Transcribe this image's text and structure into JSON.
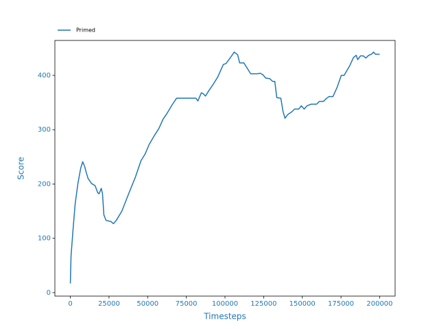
{
  "chart_data": {
    "type": "line",
    "x_label": "Timesteps",
    "y_label": "Score",
    "x": [
      0,
      440,
      1800,
      3100,
      4900,
      6700,
      8000,
      9300,
      10200,
      11500,
      13700,
      16000,
      17700,
      18600,
      20000,
      20800,
      21700,
      23100,
      26200,
      27900,
      29700,
      33300,
      37700,
      42100,
      45700,
      48300,
      51000,
      54500,
      57200,
      59900,
      62500,
      66100,
      68700,
      77600,
      81200,
      82500,
      84700,
      86000,
      87400,
      89600,
      92700,
      95300,
      98900,
      100700,
      103300,
      106000,
      108200,
      109500,
      112200,
      114000,
      116600,
      121100,
      122800,
      124600,
      126400,
      129000,
      130800,
      132200,
      133500,
      136100,
      137500,
      138800,
      140600,
      143200,
      145000,
      147700,
      149400,
      151200,
      153000,
      155700,
      159200,
      161000,
      163600,
      165400,
      167200,
      169800,
      172500,
      175200,
      177000,
      180500,
      183100,
      184900,
      185800,
      187600,
      189400,
      191100,
      192900,
      194700,
      196000,
      197300,
      200000
    ],
    "series": [
      {
        "name": "Primed",
        "color": "#1f77b4",
        "values": [
          17,
          67,
          118,
          163,
          201,
          229,
          241,
          232,
          222,
          210,
          201,
          197,
          184,
          182,
          192,
          182,
          143,
          133,
          131,
          127,
          133,
          150,
          182,
          213,
          243,
          255,
          273,
          290,
          302,
          319,
          330,
          347,
          358,
          358,
          358,
          353,
          368,
          366,
          362,
          372,
          385,
          397,
          420,
          422,
          432,
          443,
          438,
          423,
          423,
          415,
          403,
          403,
          404,
          401,
          395,
          394,
          389,
          389,
          359,
          358,
          334,
          321,
          328,
          333,
          338,
          338,
          344,
          338,
          344,
          347,
          347,
          352,
          352,
          357,
          361,
          361,
          378,
          400,
          400,
          417,
          433,
          437,
          429,
          436,
          436,
          432,
          437,
          439,
          443,
          439,
          439
        ]
      }
    ],
    "xlim": [
      -10000,
      210000
    ],
    "ylim": [
      -6.4,
      464.4
    ],
    "xticks": [
      0,
      25000,
      50000,
      75000,
      100000,
      125000,
      150000,
      175000,
      200000
    ],
    "yticks": [
      0,
      100,
      200,
      300,
      400
    ],
    "legend": "upper left",
    "label_color": "#1f77b4"
  }
}
